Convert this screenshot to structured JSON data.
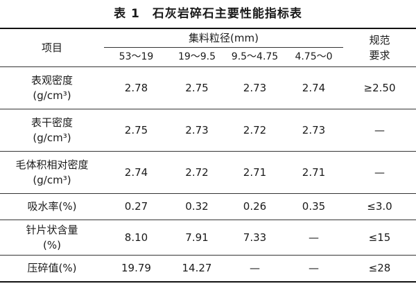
{
  "title": "表 1　石灰岩碎石主要性能指标表",
  "table": {
    "header": {
      "item": "项目",
      "group": "集料粒径(mm)",
      "spec": [
        "规范",
        "要求"
      ],
      "sizes": [
        "53～19",
        "19～9.5",
        "9.5～4.75",
        "4.75～0"
      ]
    },
    "rows": [
      {
        "name": [
          "表观密度",
          "(g/cm³)"
        ],
        "values": [
          "2.78",
          "2.75",
          "2.73",
          "2.74"
        ],
        "spec": "≥2.50"
      },
      {
        "name": [
          "表干密度",
          "(g/cm³)"
        ],
        "values": [
          "2.75",
          "2.73",
          "2.72",
          "2.73"
        ],
        "spec": "—"
      },
      {
        "name": [
          "毛体积相对密度",
          "(g/cm³)"
        ],
        "values": [
          "2.74",
          "2.72",
          "2.71",
          "2.71"
        ],
        "spec": "—"
      },
      {
        "name": [
          "吸水率(%)"
        ],
        "values": [
          "0.27",
          "0.32",
          "0.26",
          "0.35"
        ],
        "spec": "≤3.0"
      },
      {
        "name": [
          "针片状含量",
          "(%)"
        ],
        "values": [
          "8.10",
          "7.91",
          "7.33",
          "—"
        ],
        "spec": "≤15"
      },
      {
        "name": [
          "压碎值(%)"
        ],
        "values": [
          "19.79",
          "14.27",
          "—",
          "—"
        ],
        "spec": "≤28"
      }
    ]
  }
}
